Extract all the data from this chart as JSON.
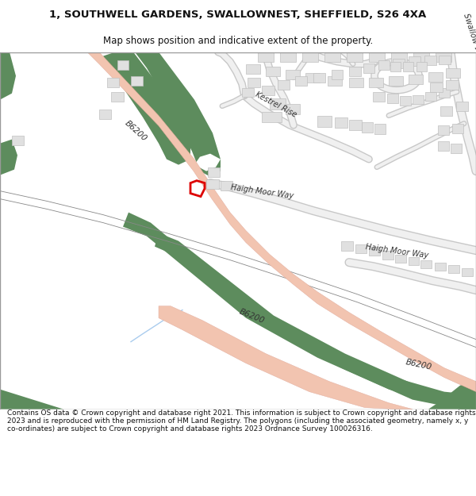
{
  "title": "1, SOUTHWELL GARDENS, SWALLOWNEST, SHEFFIELD, S26 4XA",
  "subtitle": "Map shows position and indicative extent of the property.",
  "footer": "Contains OS data © Crown copyright and database right 2021. This information is subject to Crown copyright and database rights 2023 and is reproduced with the permission of HM Land Registry. The polygons (including the associated geometry, namely x, y co-ordinates) are subject to Crown copyright and database rights 2023 Ordnance Survey 100026316.",
  "map_bg": "#ffffff",
  "road_main_color": "#f2c4b0",
  "road_main_edge": "#e0a898",
  "green_color": "#5d8c5d",
  "building_color": "#e0e0e0",
  "building_edge": "#c0c0c0",
  "road_minor_color": "#e8e8e8",
  "road_minor_edge": "#d0d0d0",
  "property_color": "#dd0000",
  "text_color": "#444444",
  "water_color": "#c8dff0"
}
